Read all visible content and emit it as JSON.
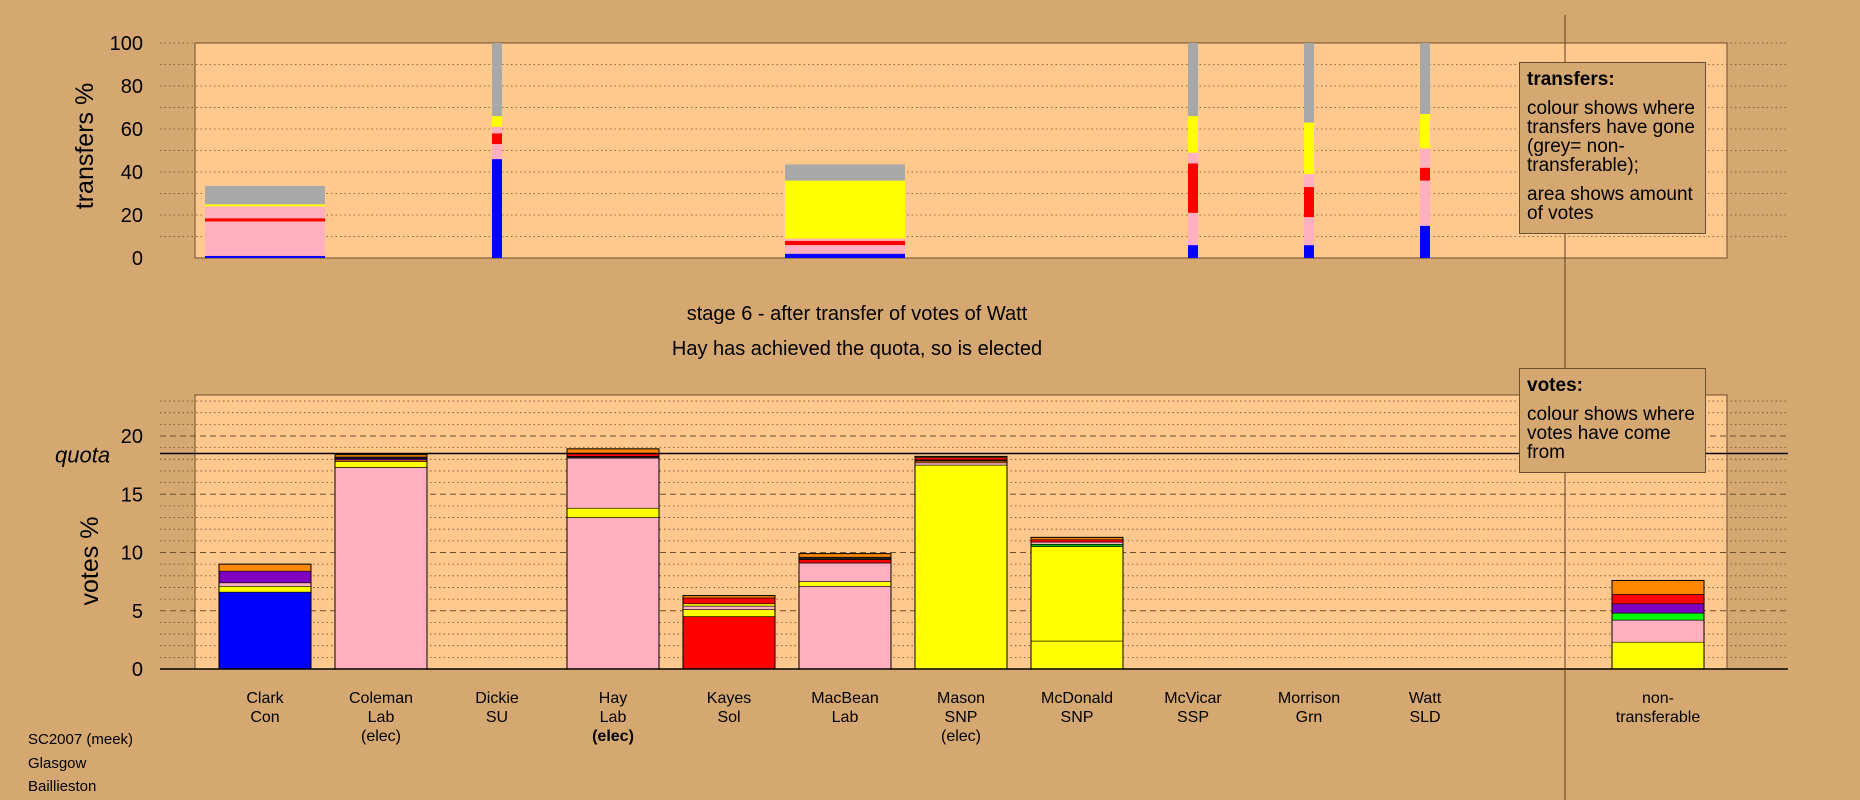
{
  "chart_data": [
    {
      "type": "bar",
      "name": "transfers",
      "ylabel": "transfers %",
      "ylim": [
        0,
        100
      ],
      "yticks": [
        0,
        20,
        40,
        60,
        80,
        100
      ],
      "grid": "dotted every 10",
      "bars": [
        {
          "category": "Clark",
          "full_width": true,
          "segments": [
            {
              "color": "#0000ff",
              "value": 1
            },
            {
              "color": "#ffb0c0",
              "value": 16
            },
            {
              "color": "#ff0000",
              "value": 1.5
            },
            {
              "color": "#ffb0c0",
              "value": 5.5
            },
            {
              "color": "#ffff00",
              "value": 1
            },
            {
              "color": "#a8a8a8",
              "value": 8.5
            }
          ]
        },
        {
          "category": "Dickie",
          "full_width": false,
          "segments": [
            {
              "color": "#0000ff",
              "value": 46
            },
            {
              "color": "#ffb0c0",
              "value": 7
            },
            {
              "color": "#ff0000",
              "value": 5
            },
            {
              "color": "#ffb0c0",
              "value": 3
            },
            {
              "color": "#ffff00",
              "value": 5
            },
            {
              "color": "#a8a8a8",
              "value": 34
            }
          ]
        },
        {
          "category": "MacBean",
          "full_width": true,
          "segments": [
            {
              "color": "#0000ff",
              "value": 2
            },
            {
              "color": "#ffb0c0",
              "value": 4
            },
            {
              "color": "#ff0000",
              "value": 2
            },
            {
              "color": "#ffb0c0",
              "value": 1
            },
            {
              "color": "#ffff00",
              "value": 27
            },
            {
              "color": "#a8a8a8",
              "value": 7.5
            }
          ]
        },
        {
          "category": "McVicar",
          "full_width": false,
          "segments": [
            {
              "color": "#0000ff",
              "value": 6
            },
            {
              "color": "#ffb0c0",
              "value": 15
            },
            {
              "color": "#ff0000",
              "value": 23
            },
            {
              "color": "#ffb0c0",
              "value": 5
            },
            {
              "color": "#ffff00",
              "value": 17
            },
            {
              "color": "#a8a8a8",
              "value": 34
            }
          ]
        },
        {
          "category": "Morrison",
          "full_width": false,
          "segments": [
            {
              "color": "#0000ff",
              "value": 6
            },
            {
              "color": "#ffb0c0",
              "value": 13
            },
            {
              "color": "#ff0000",
              "value": 14
            },
            {
              "color": "#ffb0c0",
              "value": 6
            },
            {
              "color": "#ffff00",
              "value": 24
            },
            {
              "color": "#a8a8a8",
              "value": 37
            }
          ]
        },
        {
          "category": "Watt",
          "full_width": false,
          "segments": [
            {
              "color": "#0000ff",
              "value": 15
            },
            {
              "color": "#ffb0c0",
              "value": 21
            },
            {
              "color": "#ff0000",
              "value": 6
            },
            {
              "color": "#ffb0c0",
              "value": 9
            },
            {
              "color": "#ffff00",
              "value": 16
            },
            {
              "color": "#a8a8a8",
              "value": 33
            }
          ]
        }
      ]
    },
    {
      "type": "bar",
      "name": "votes",
      "ylabel": "votes %",
      "ylim": [
        0,
        23.5
      ],
      "yticks": [
        0,
        5,
        10,
        15,
        20
      ],
      "quota": 18.5,
      "quota_label": "quota",
      "grid": "dashed every 5, dotted every 1",
      "bars": [
        {
          "category": "Clark",
          "segments": [
            {
              "color": "#0000ff",
              "value": 6.6
            },
            {
              "color": "#ffff00",
              "value": 0.5
            },
            {
              "color": "#ffb0c0",
              "value": 0.3
            },
            {
              "color": "#8000c0",
              "value": 1.0
            },
            {
              "color": "#ff8800",
              "value": 0.6
            }
          ]
        },
        {
          "category": "Coleman",
          "segments": [
            {
              "color": "#ffb0c0",
              "value": 17.3
            },
            {
              "color": "#ffff00",
              "value": 0.5
            },
            {
              "color": "#ff8800",
              "value": 0.15
            },
            {
              "color": "#8000c0",
              "value": 0.1
            },
            {
              "color": "#202020",
              "value": 0.15
            },
            {
              "color": "#ff8800",
              "value": 0.2
            }
          ]
        },
        {
          "category": "Dickie",
          "segments": []
        },
        {
          "category": "Hay",
          "segments": [
            {
              "color": "#ffb0c0",
              "value": 13.0
            },
            {
              "color": "#ffff00",
              "value": 0.8
            },
            {
              "color": "#ffb0c0",
              "value": 4.3
            },
            {
              "color": "#202020",
              "value": 0.15
            },
            {
              "color": "#ff0000",
              "value": 0.25
            },
            {
              "color": "#ff8800",
              "value": 0.4
            }
          ]
        },
        {
          "category": "Kayes",
          "segments": [
            {
              "color": "#ff0000",
              "value": 4.5
            },
            {
              "color": "#ffff00",
              "value": 0.6
            },
            {
              "color": "#ffb0c0",
              "value": 0.3
            },
            {
              "color": "#ffff00",
              "value": 0.2
            },
            {
              "color": "#ff0000",
              "value": 0.5
            },
            {
              "color": "#ff8800",
              "value": 0.2
            }
          ]
        },
        {
          "category": "MacBean",
          "segments": [
            {
              "color": "#ffb0c0",
              "value": 7.1
            },
            {
              "color": "#ffff00",
              "value": 0.4
            },
            {
              "color": "#ffb0c0",
              "value": 1.6
            },
            {
              "color": "#ff0000",
              "value": 0.3
            },
            {
              "color": "#202020",
              "value": 0.2
            },
            {
              "color": "#ff8800",
              "value": 0.3
            }
          ]
        },
        {
          "category": "Mason",
          "segments": [
            {
              "color": "#ffff00",
              "value": 17.5
            },
            {
              "color": "#ffb0c0",
              "value": 0.2
            },
            {
              "color": "#ff8800",
              "value": 0.15
            },
            {
              "color": "#202020",
              "value": 0.1
            },
            {
              "color": "#ff0000",
              "value": 0.2
            },
            {
              "color": "#ff8800",
              "value": 0.1
            }
          ]
        },
        {
          "category": "McDonald",
          "segments": [
            {
              "color": "#ffff00",
              "value": 2.4
            },
            {
              "color": "#ffff00",
              "value": 8.1
            },
            {
              "color": "#00c000",
              "value": 0.2
            },
            {
              "color": "#ffb0c0",
              "value": 0.2
            },
            {
              "color": "#ff0000",
              "value": 0.2
            },
            {
              "color": "#ff8800",
              "value": 0.2
            }
          ]
        },
        {
          "category": "McVicar",
          "segments": []
        },
        {
          "category": "Morrison",
          "segments": []
        },
        {
          "category": "Watt",
          "segments": []
        },
        {
          "category": "non-transferable",
          "segments": [
            {
              "color": "#ffff00",
              "value": 2.3
            },
            {
              "color": "#ffb0c0",
              "value": 1.9
            },
            {
              "color": "#00ff00",
              "value": 0.6
            },
            {
              "color": "#8000c0",
              "value": 0.8
            },
            {
              "color": "#ff0000",
              "value": 0.8
            },
            {
              "color": "#ff8800",
              "value": 1.2
            }
          ]
        }
      ]
    }
  ],
  "candidates": [
    {
      "name": "Clark",
      "party": "Con",
      "status": "",
      "status_bold": false
    },
    {
      "name": "Coleman",
      "party": "Lab",
      "status": "(elec)",
      "status_bold": false
    },
    {
      "name": "Dickie",
      "party": "SU",
      "status": "",
      "status_bold": false
    },
    {
      "name": "Hay",
      "party": "Lab",
      "status": "(elec)",
      "status_bold": true
    },
    {
      "name": "Kayes",
      "party": "Sol",
      "status": "",
      "status_bold": false
    },
    {
      "name": "MacBean",
      "party": "Lab",
      "status": "",
      "status_bold": false
    },
    {
      "name": "Mason",
      "party": "SNP",
      "status": "(elec)",
      "status_bold": false
    },
    {
      "name": "McDonald",
      "party": "SNP",
      "status": "",
      "status_bold": false
    },
    {
      "name": "McVicar",
      "party": "SSP",
      "status": "",
      "status_bold": false
    },
    {
      "name": "Morrison",
      "party": "Grn",
      "status": "",
      "status_bold": false
    },
    {
      "name": "Watt",
      "party": "SLD",
      "status": "",
      "status_bold": false
    }
  ],
  "nontransferable_label": [
    "non-",
    "transferable"
  ],
  "stage": {
    "line1": "stage 6 - after transfer of votes of Watt",
    "line2": "Hay has achieved the quota, so is elected"
  },
  "transfers_legend": {
    "title": "transfers:",
    "p1": "colour shows where transfers have gone (grey= non-transferable);",
    "p2": "area shows amount of votes"
  },
  "votes_legend": {
    "title": "votes:",
    "p1": "colour shows where votes have come from"
  },
  "footer": {
    "line1": "SC2007 (meek)",
    "line2": "Glasgow",
    "line3": "Baillieston"
  },
  "colors": {
    "background": "#d4a870",
    "plot_background": "#ffc98e",
    "grey_nontransferable": "#a8a8a8"
  }
}
